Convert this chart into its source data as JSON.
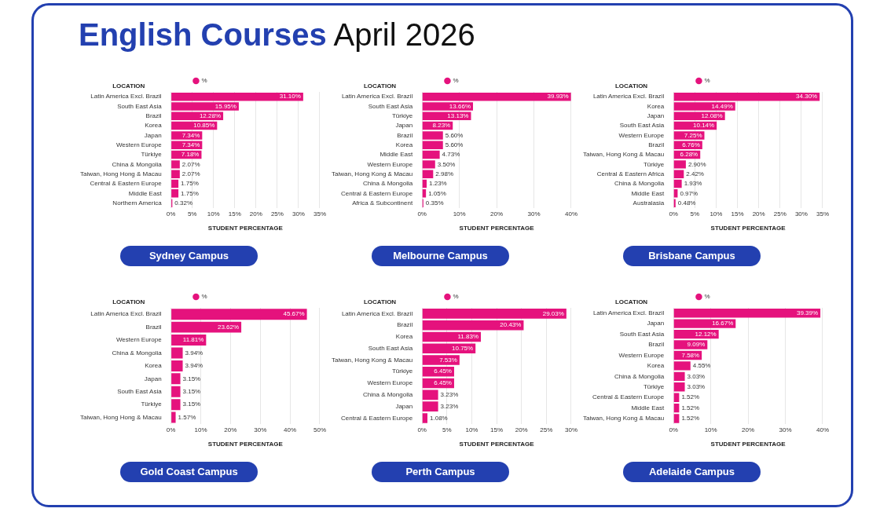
{
  "chart_data": [
    {
      "type": "other",
      "title": "English Courses",
      "subtitle": "April 2026"
    },
    {
      "type": "bar",
      "orientation": "horizontal",
      "title": "Sydney Campus",
      "ylabel": "LOCATION",
      "xlabel": "STUDENT PERCENTAGE",
      "legend": "top",
      "grid": "x",
      "categories": [
        "Latin America Excl. Brazil",
        "South East Asia",
        "Brazil",
        "Korea",
        "Japan",
        "Western Europe",
        "Türkiye",
        "China & Mongolia",
        "Taiwan, Hong Hong & Macau",
        "Central & Eastern Europe",
        "Middle East",
        "Northern America"
      ],
      "series": [
        {
          "name": "%",
          "color": "#e5127d",
          "values": [
            31.1,
            15.95,
            12.28,
            10.85,
            7.34,
            7.34,
            7.18,
            2.07,
            2.07,
            1.75,
            1.75,
            0.32
          ],
          "value_labels": [
            "31.10%",
            "15.95%",
            "12.28%",
            "10.85%",
            "7.34%",
            "7.34%",
            "7.18%",
            "2.07%",
            "2.07%",
            "1.75%",
            "1.75%",
            "0.32%"
          ]
        }
      ],
      "xlim": [
        0,
        35
      ],
      "xticks": [
        {
          "value": 0,
          "label": "0%"
        },
        {
          "value": 5,
          "label": "5%"
        },
        {
          "value": 10,
          "label": "10%"
        },
        {
          "value": 15,
          "label": "15%"
        },
        {
          "value": 20,
          "label": "20%"
        },
        {
          "value": 25,
          "label": "25%"
        },
        {
          "value": 30,
          "label": "30%"
        },
        {
          "value": 35,
          "label": "35%"
        }
      ]
    },
    {
      "type": "bar",
      "orientation": "horizontal",
      "title": "Melbourne Campus",
      "ylabel": "LOCATION",
      "xlabel": "STUDENT PERCENTAGE",
      "legend": "top",
      "grid": "x",
      "categories": [
        "Latin America Excl. Brazil",
        "South East Asia",
        "Türkiye",
        "Japan",
        "Brazil",
        "Korea",
        "Middle East",
        "Western Europe",
        "Taiwan, Hong Kong & Macau",
        "China & Mongolia",
        "Central & Eastern Europe",
        "Africa & Subcontinent"
      ],
      "series": [
        {
          "name": "%",
          "color": "#e5127d",
          "values": [
            39.93,
            13.66,
            13.13,
            8.23,
            5.6,
            5.6,
            4.73,
            3.5,
            2.98,
            1.23,
            1.05,
            0.35
          ],
          "value_labels": [
            "39.93%",
            "13.66%",
            "13.13%",
            "8.23%",
            "5.60%",
            "5.60%",
            "4.73%",
            "3.50%",
            "2.98%",
            "1.23%",
            "1.05%",
            "0.35%"
          ]
        }
      ],
      "xlim": [
        0,
        40
      ],
      "xticks": [
        {
          "value": 0,
          "label": "0%"
        },
        {
          "value": 10,
          "label": "10%"
        },
        {
          "value": 20,
          "label": "20%"
        },
        {
          "value": 30,
          "label": "30%"
        },
        {
          "value": 40,
          "label": "40%"
        }
      ]
    },
    {
      "type": "bar",
      "orientation": "horizontal",
      "title": "Brisbane Campus",
      "ylabel": "LOCATION",
      "xlabel": "STUDENT PERCENTAGE",
      "legend": "top",
      "grid": "x",
      "categories": [
        "Latin America Excl. Brazil",
        "Korea",
        "Japan",
        "South East Asia",
        "Western Europe",
        "Brazil",
        "Taiwan, Hong Kong & Macau",
        "Türkiye",
        "Central & Eastern Africa",
        "China & Mongolia",
        "Middle East",
        "Australasia"
      ],
      "series": [
        {
          "name": "%",
          "color": "#e5127d",
          "values": [
            34.3,
            14.49,
            12.08,
            10.14,
            7.25,
            6.76,
            6.28,
            2.9,
            2.42,
            1.93,
            0.97,
            0.48
          ],
          "value_labels": [
            "34.30%",
            "14.49%",
            "12.08%",
            "10.14%",
            "7.25%",
            "6.76%",
            "6.28%",
            "2.90%",
            "2.42%",
            "1.93%",
            "0.97%",
            "0.48%"
          ]
        }
      ],
      "xlim": [
        0,
        35
      ],
      "xticks": [
        {
          "value": 0,
          "label": "0%"
        },
        {
          "value": 5,
          "label": "5%"
        },
        {
          "value": 10,
          "label": "10%"
        },
        {
          "value": 15,
          "label": "15%"
        },
        {
          "value": 20,
          "label": "20%"
        },
        {
          "value": 25,
          "label": "25%"
        },
        {
          "value": 30,
          "label": "30%"
        },
        {
          "value": 35,
          "label": "35%"
        }
      ]
    },
    {
      "type": "bar",
      "orientation": "horizontal",
      "title": "Gold Coast Campus",
      "ylabel": "LOCATION",
      "xlabel": "STUDENT PERCENTAGE",
      "legend": "top",
      "grid": "x",
      "categories": [
        "Latin America Excl. Brazil",
        "Brazil",
        "Western Europe",
        "China & Mongolia",
        "Korea",
        "Japan",
        "South East Asia",
        "Türkiye",
        "Taiwan, Hong Hong & Macau"
      ],
      "series": [
        {
          "name": "%",
          "color": "#e5127d",
          "values": [
            45.67,
            23.62,
            11.81,
            3.94,
            3.94,
            3.15,
            3.15,
            3.15,
            1.57
          ],
          "value_labels": [
            "45.67%",
            "23.62%",
            "11.81%",
            "3.94%",
            "3.94%",
            "3.15%",
            "3.15%",
            "3.15%",
            "1.57%"
          ]
        }
      ],
      "xlim": [
        0,
        50
      ],
      "xticks": [
        {
          "value": 0,
          "label": "0%"
        },
        {
          "value": 10,
          "label": "10%"
        },
        {
          "value": 20,
          "label": "20%"
        },
        {
          "value": 30,
          "label": "30%"
        },
        {
          "value": 40,
          "label": "40%"
        },
        {
          "value": 50,
          "label": "50%"
        }
      ]
    },
    {
      "type": "bar",
      "orientation": "horizontal",
      "title": "Perth Campus",
      "ylabel": "LOCATION",
      "xlabel": "STUDENT PERCENTAGE",
      "legend": "top",
      "grid": "x",
      "categories": [
        "Latin America Excl. Brazil",
        "Brazil",
        "Korea",
        "South East Asia",
        "Taiwan, Hong Kong & Macau",
        "Türkiye",
        "Western Europe",
        "China & Mongolia",
        "Japan",
        "Central & Eastern Europe"
      ],
      "series": [
        {
          "name": "%",
          "color": "#e5127d",
          "values": [
            29.03,
            20.43,
            11.83,
            10.75,
            7.53,
            6.45,
            6.45,
            3.23,
            3.23,
            1.08
          ],
          "value_labels": [
            "29.03%",
            "20.43%",
            "11.83%",
            "10.75%",
            "7.53%",
            "6.45%",
            "6.45%",
            "3.23%",
            "3.23%",
            "1.08%"
          ]
        }
      ],
      "xlim": [
        0,
        30
      ],
      "xticks": [
        {
          "value": 0,
          "label": "0%"
        },
        {
          "value": 5,
          "label": "5%"
        },
        {
          "value": 10,
          "label": "10%"
        },
        {
          "value": 15,
          "label": "15%"
        },
        {
          "value": 20,
          "label": "20%"
        },
        {
          "value": 25,
          "label": "25%"
        },
        {
          "value": 30,
          "label": "30%"
        }
      ]
    },
    {
      "type": "bar",
      "orientation": "horizontal",
      "title": "Adelaide Campus",
      "ylabel": "LOCATION",
      "xlabel": "STUDENT PERCENTAGE",
      "legend": "top",
      "grid": "x",
      "categories": [
        "Latin America Excl. Brazil",
        "Japan",
        "South East Asia",
        "Brazil",
        "Western Europe",
        "Korea",
        "China & Mongolia",
        "Türkiye",
        "Central & Eastern Europe",
        "Middle East",
        "Taiwan, Hong Kong & Macau"
      ],
      "series": [
        {
          "name": "%",
          "color": "#e5127d",
          "values": [
            39.39,
            16.67,
            12.12,
            9.09,
            7.58,
            4.55,
            3.03,
            3.03,
            1.52,
            1.52,
            1.52
          ],
          "value_labels": [
            "39.39%",
            "16.67%",
            "12.12%",
            "9.09%",
            "7.58%",
            "4.55%",
            "3.03%",
            "3.03%",
            "1.52%",
            "1.52%",
            "1.52%"
          ]
        }
      ],
      "xlim": [
        0,
        40
      ],
      "xticks": [
        {
          "value": 0,
          "label": "0%"
        },
        {
          "value": 10,
          "label": "10%"
        },
        {
          "value": 20,
          "label": "20%"
        },
        {
          "value": 30,
          "label": "30%"
        },
        {
          "value": 40,
          "label": "40%"
        }
      ]
    }
  ]
}
